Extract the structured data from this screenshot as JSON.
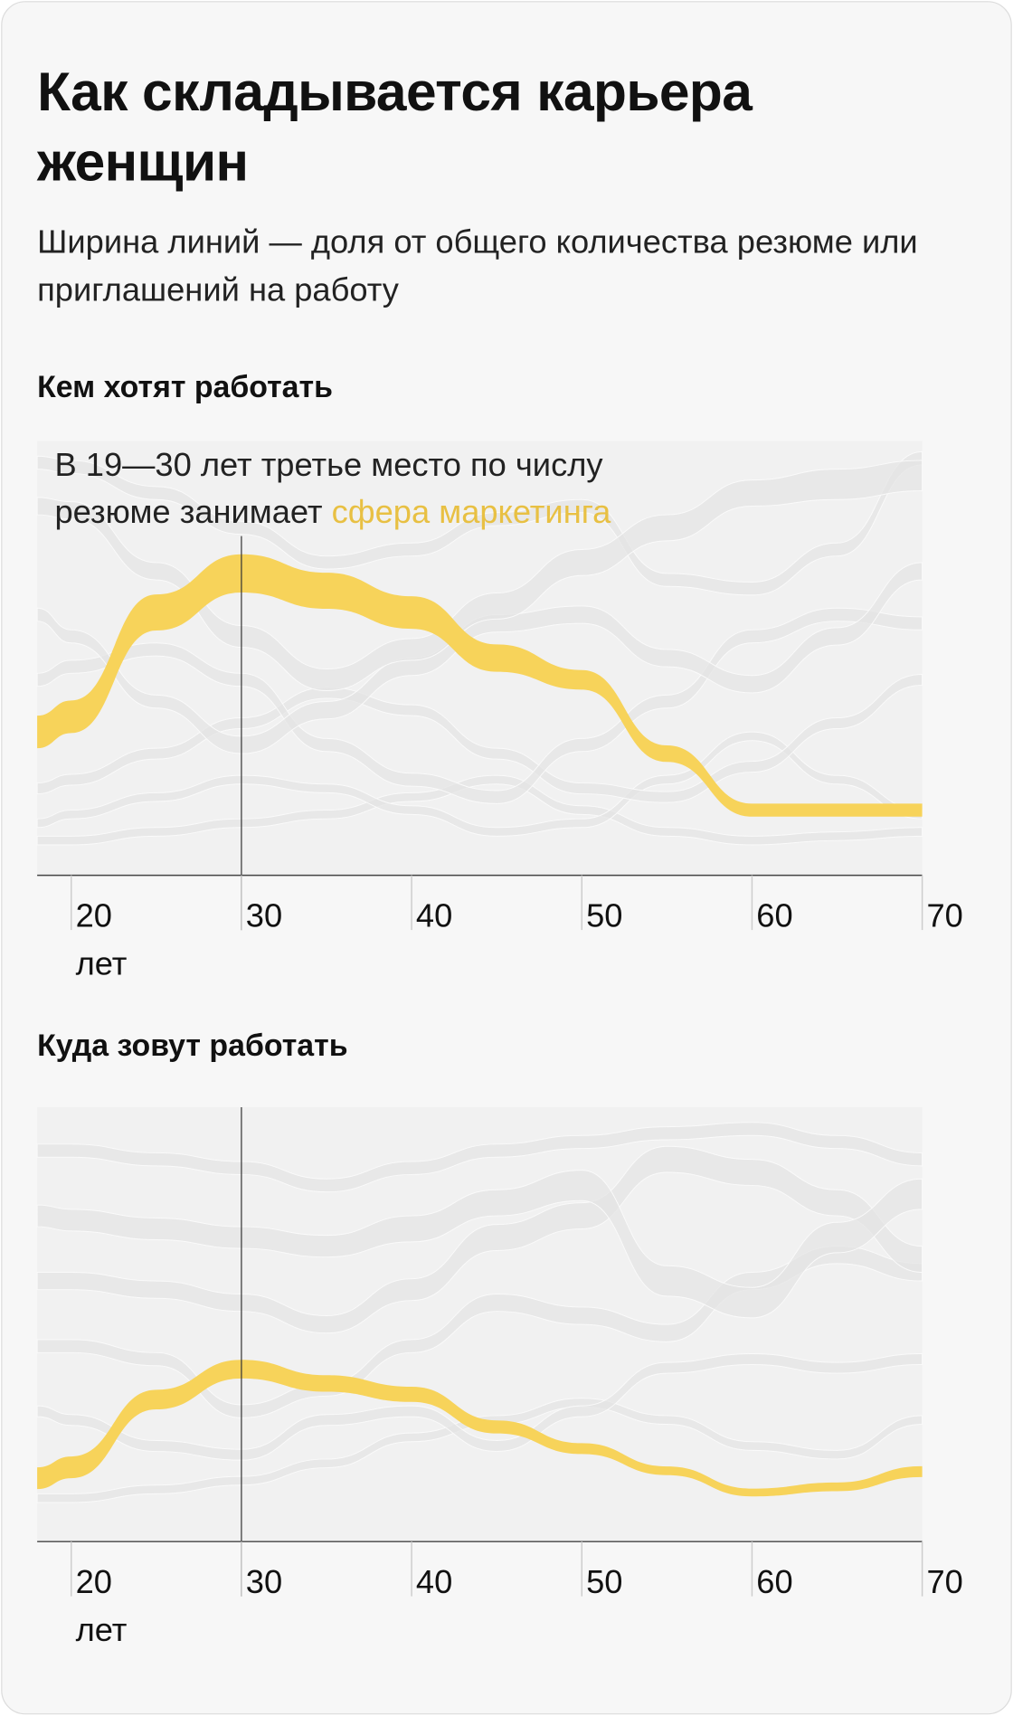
{
  "title": "Как складывается карьера женщин",
  "subtitle": "Ширина линий — доля от общего количества резюме или приглашений на работу",
  "chart_data": [
    {
      "type": "bump",
      "title": "Кем хотят работать",
      "annotation": "В 19—30 лет третье место по числу резюме занимает ",
      "reference_x": 30,
      "x": [
        18,
        20,
        25,
        30,
        35,
        40,
        45,
        50,
        55,
        60,
        65,
        70
      ],
      "xlim": [
        18,
        70
      ],
      "ylim": [
        0,
        100
      ],
      "xticks": [
        {
          "value": 20,
          "label": "20 лет"
        },
        30,
        40,
        50,
        60,
        70
      ],
      "series": [
        {
          "name": "сфера маркетинга",
          "color": "#f7d35a",
          "values": [
            33,
            36.5,
            60.5,
            69.5,
            65.5,
            60.5,
            50,
            45,
            28,
            15,
            15,
            15
          ],
          "widths": [
            7.5,
            7.5,
            8.3,
            8.8,
            8.3,
            7.5,
            6.3,
            4.5,
            3.8,
            3,
            3,
            3
          ]
        },
        {
          "color": "#e4e4e4",
          "values": [
            85,
            84,
            70,
            55,
            45,
            52,
            62,
            72,
            80,
            88,
            90,
            92
          ],
          "widths": [
            4,
            4,
            4,
            5,
            5,
            5,
            6,
            6,
            6,
            6,
            7,
            7
          ]
        },
        {
          "color": "#e4e4e4",
          "values": [
            60,
            55,
            40,
            30,
            38,
            48,
            58,
            60,
            50,
            44,
            55,
            70
          ],
          "widths": [
            3,
            3,
            3,
            4,
            4,
            4,
            4,
            4,
            4,
            4,
            4,
            4
          ]
        },
        {
          "color": "#e4e4e4",
          "values": [
            45,
            48,
            52,
            45,
            30,
            22,
            18,
            30,
            40,
            55,
            60,
            58
          ],
          "widths": [
            3,
            3,
            3,
            3,
            3,
            3,
            3,
            3,
            3,
            3,
            3,
            3
          ]
        },
        {
          "color": "#e4e4e4",
          "values": [
            20,
            22,
            28,
            35,
            42,
            38,
            28,
            20,
            18,
            25,
            35,
            45
          ],
          "widths": [
            2.5,
            2.5,
            2.5,
            2.5,
            2.5,
            2.5,
            2.5,
            2.5,
            2.5,
            2.5,
            2.5,
            2.5
          ]
        },
        {
          "color": "#e4e4e4",
          "values": [
            12,
            14,
            18,
            22,
            20,
            15,
            10,
            12,
            22,
            32,
            22,
            14
          ],
          "widths": [
            2,
            2,
            2,
            2,
            2,
            2,
            2,
            2,
            2,
            2,
            2,
            2
          ]
        },
        {
          "color": "#e4e4e4",
          "values": [
            8,
            8,
            10,
            12,
            14,
            18,
            22,
            15,
            10,
            8,
            9,
            10
          ],
          "widths": [
            2,
            2,
            2,
            2,
            2,
            2,
            2,
            2,
            2,
            2,
            2,
            2
          ]
        },
        {
          "color": "#e4e4e4",
          "values": [
            95,
            94,
            88,
            80,
            72,
            75,
            82,
            85,
            68,
            66,
            75,
            96
          ],
          "widths": [
            3,
            3,
            3,
            3,
            3,
            3,
            3,
            3,
            3,
            3,
            3,
            3
          ]
        }
      ]
    },
    {
      "type": "bump",
      "title": "Куда зовут работать",
      "reference_x": 30,
      "x": [
        18,
        20,
        25,
        30,
        35,
        40,
        45,
        50,
        55,
        60,
        65,
        70
      ],
      "xlim": [
        18,
        70
      ],
      "ylim": [
        0,
        100
      ],
      "xticks": [
        {
          "value": 20,
          "label": "20 лет"
        },
        30,
        40,
        50,
        60,
        70
      ],
      "series": [
        {
          "name": "сфера маркетинга",
          "color": "#f7d35a",
          "values": [
            14.6,
            17.1,
            32.7,
            39.7,
            36.4,
            33.9,
            26.4,
            21.4,
            16.3,
            11.3,
            12.6,
            16.1
          ],
          "widths": [
            5,
            5,
            4.5,
            4.3,
            3.8,
            3.5,
            3,
            2.5,
            2,
            1.8,
            2,
            2.5
          ]
        },
        {
          "color": "#e4e4e4",
          "values": [
            75,
            74,
            72,
            70,
            68,
            72,
            78,
            82,
            60,
            55,
            70,
            80
          ],
          "widths": [
            5,
            5,
            5,
            5,
            5,
            6,
            6,
            7,
            7,
            7,
            7,
            7
          ]
        },
        {
          "color": "#e4e4e4",
          "values": [
            60,
            60,
            58,
            55,
            50,
            58,
            70,
            75,
            88,
            85,
            78,
            65
          ],
          "widths": [
            4,
            4,
            4,
            4,
            4,
            5,
            6,
            6,
            6,
            6,
            6,
            6
          ]
        },
        {
          "color": "#e4e4e4",
          "values": [
            45,
            45,
            42,
            30,
            35,
            45,
            55,
            52,
            48,
            60,
            66,
            62
          ],
          "widths": [
            3,
            3,
            3,
            3,
            3,
            3,
            4,
            4,
            4,
            4,
            4,
            4
          ]
        },
        {
          "color": "#e4e4e4",
          "values": [
            30,
            28,
            22,
            20,
            28,
            30,
            22,
            30,
            40,
            42,
            40,
            42
          ],
          "widths": [
            2.5,
            2.5,
            2.5,
            2.5,
            2.5,
            2.5,
            2.5,
            2.5,
            2.5,
            2.5,
            2.5,
            2.5
          ]
        },
        {
          "color": "#e4e4e4",
          "values": [
            10,
            10,
            12,
            14,
            18,
            24,
            28,
            32,
            28,
            22,
            20,
            28
          ],
          "widths": [
            2,
            2,
            2,
            2,
            2,
            2,
            2,
            2,
            2,
            2,
            2,
            2
          ]
        },
        {
          "color": "#e4e4e4",
          "values": [
            90,
            90,
            88,
            86,
            82,
            86,
            90,
            92,
            94,
            95,
            92,
            88
          ],
          "widths": [
            3,
            3,
            3,
            3,
            3,
            3,
            3,
            3,
            3,
            3,
            3,
            3
          ]
        }
      ]
    }
  ]
}
